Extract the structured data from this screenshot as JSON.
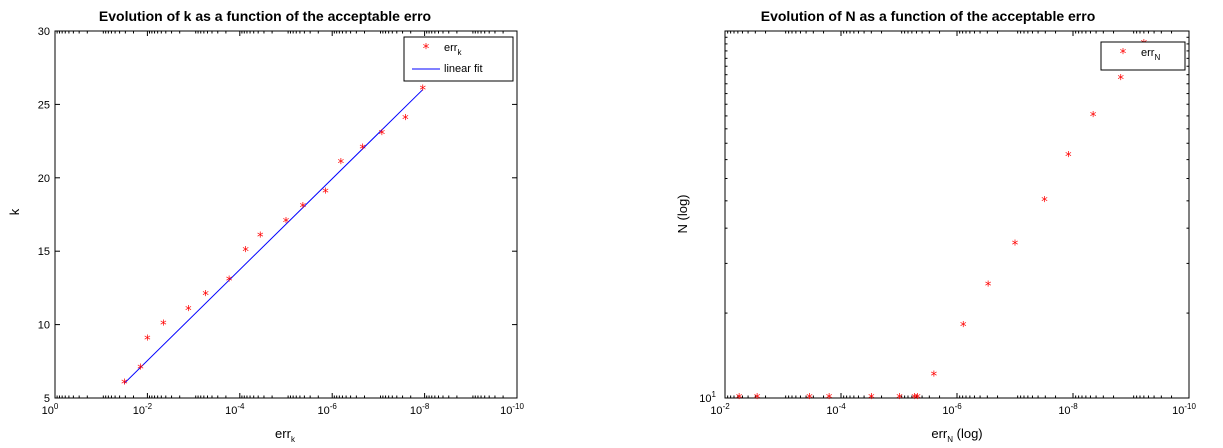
{
  "chart_data": [
    {
      "type": "scatter",
      "title": "Evolution of k as a function of the acceptable erro",
      "xlabel": "err",
      "xlabel_sub": "k",
      "ylabel": "k",
      "xscale": "log",
      "x_reversed": true,
      "xlim": [
        1,
        1e-10
      ],
      "ylim": [
        5,
        30
      ],
      "x_ticks": [
        {
          "value": 1,
          "base": "10",
          "exp": "0"
        },
        {
          "value": 0.01,
          "base": "10",
          "exp": "-2"
        },
        {
          "value": 0.0001,
          "base": "10",
          "exp": "-4"
        },
        {
          "value": 1e-06,
          "base": "10",
          "exp": "-6"
        },
        {
          "value": 1e-08,
          "base": "10",
          "exp": "-8"
        },
        {
          "value": 1e-10,
          "base": "10",
          "exp": "-10"
        }
      ],
      "y_ticks": [
        {
          "value": 5,
          "label": "5"
        },
        {
          "value": 10,
          "label": "10"
        },
        {
          "value": 15,
          "label": "15"
        },
        {
          "value": 20,
          "label": "20"
        },
        {
          "value": 25,
          "label": "25"
        },
        {
          "value": 30,
          "label": "30"
        }
      ],
      "legend_position": "top-right",
      "series": [
        {
          "name": "err",
          "name_sub": "k",
          "kind": "marker",
          "marker": "*",
          "color": "#ff0000",
          "points": [
            [
              0.0316,
              6
            ],
            [
              0.0141,
              7
            ],
            [
              0.01,
              9
            ],
            [
              0.0045,
              10
            ],
            [
              0.0013,
              11
            ],
            [
              0.00055,
              12
            ],
            [
              0.00017,
              13
            ],
            [
              7.5e-05,
              15
            ],
            [
              3.6e-05,
              16
            ],
            [
              1e-05,
              17
            ],
            [
              4.3e-06,
              18
            ],
            [
              1.4e-06,
              19
            ],
            [
              6.5e-07,
              21
            ],
            [
              2.2e-07,
              22
            ],
            [
              8.4e-08,
              23
            ],
            [
              2.6e-08,
              24
            ],
            [
              1.1e-08,
              26
            ]
          ]
        },
        {
          "name": "linear fit",
          "kind": "line",
          "color": "#0000ff",
          "points": [
            [
              0.0316,
              6
            ],
            [
              1.1e-08,
              26
            ]
          ]
        }
      ]
    },
    {
      "type": "scatter",
      "title": "Evolution of N as a function of the acceptable erro",
      "xlabel": "err",
      "xlabel_sub": "N",
      "xlabel_suffix": " (log)",
      "ylabel": "N (log)",
      "xscale": "log",
      "yscale": "log",
      "x_reversed": true,
      "xlim": [
        0.01,
        1e-10
      ],
      "ylim": [
        10,
        200
      ],
      "x_ticks": [
        {
          "value": 0.01,
          "base": "10",
          "exp": "-2"
        },
        {
          "value": 0.0001,
          "base": "10",
          "exp": "-4"
        },
        {
          "value": 1e-06,
          "base": "10",
          "exp": "-6"
        },
        {
          "value": 1e-08,
          "base": "10",
          "exp": "-8"
        },
        {
          "value": 1e-10,
          "base": "10",
          "exp": "-10"
        }
      ],
      "y_ticks": [
        {
          "value": 10,
          "base": "10",
          "exp": "1"
        }
      ],
      "legend_position": "top-right",
      "series": [
        {
          "name": "err",
          "name_sub": "N",
          "kind": "marker",
          "marker": "*",
          "color": "#ff0000",
          "points": [
            [
              0.0057,
              10
            ],
            [
              0.0028,
              10
            ],
            [
              0.00035,
              10
            ],
            [
              0.00016,
              10
            ],
            [
              3e-05,
              10
            ],
            [
              9.8e-06,
              10
            ],
            [
              5.4e-06,
              10
            ],
            [
              4.8e-06,
              10
            ],
            [
              2.5e-06,
              12
            ],
            [
              7.8e-07,
              18
            ],
            [
              2.9e-07,
              25
            ],
            [
              1e-07,
              35
            ],
            [
              3.1e-08,
              50
            ],
            [
              1.2e-08,
              72
            ],
            [
              4.5e-09,
              100
            ],
            [
              1.5e-09,
              135
            ],
            [
              6e-10,
              180
            ]
          ]
        }
      ]
    }
  ]
}
